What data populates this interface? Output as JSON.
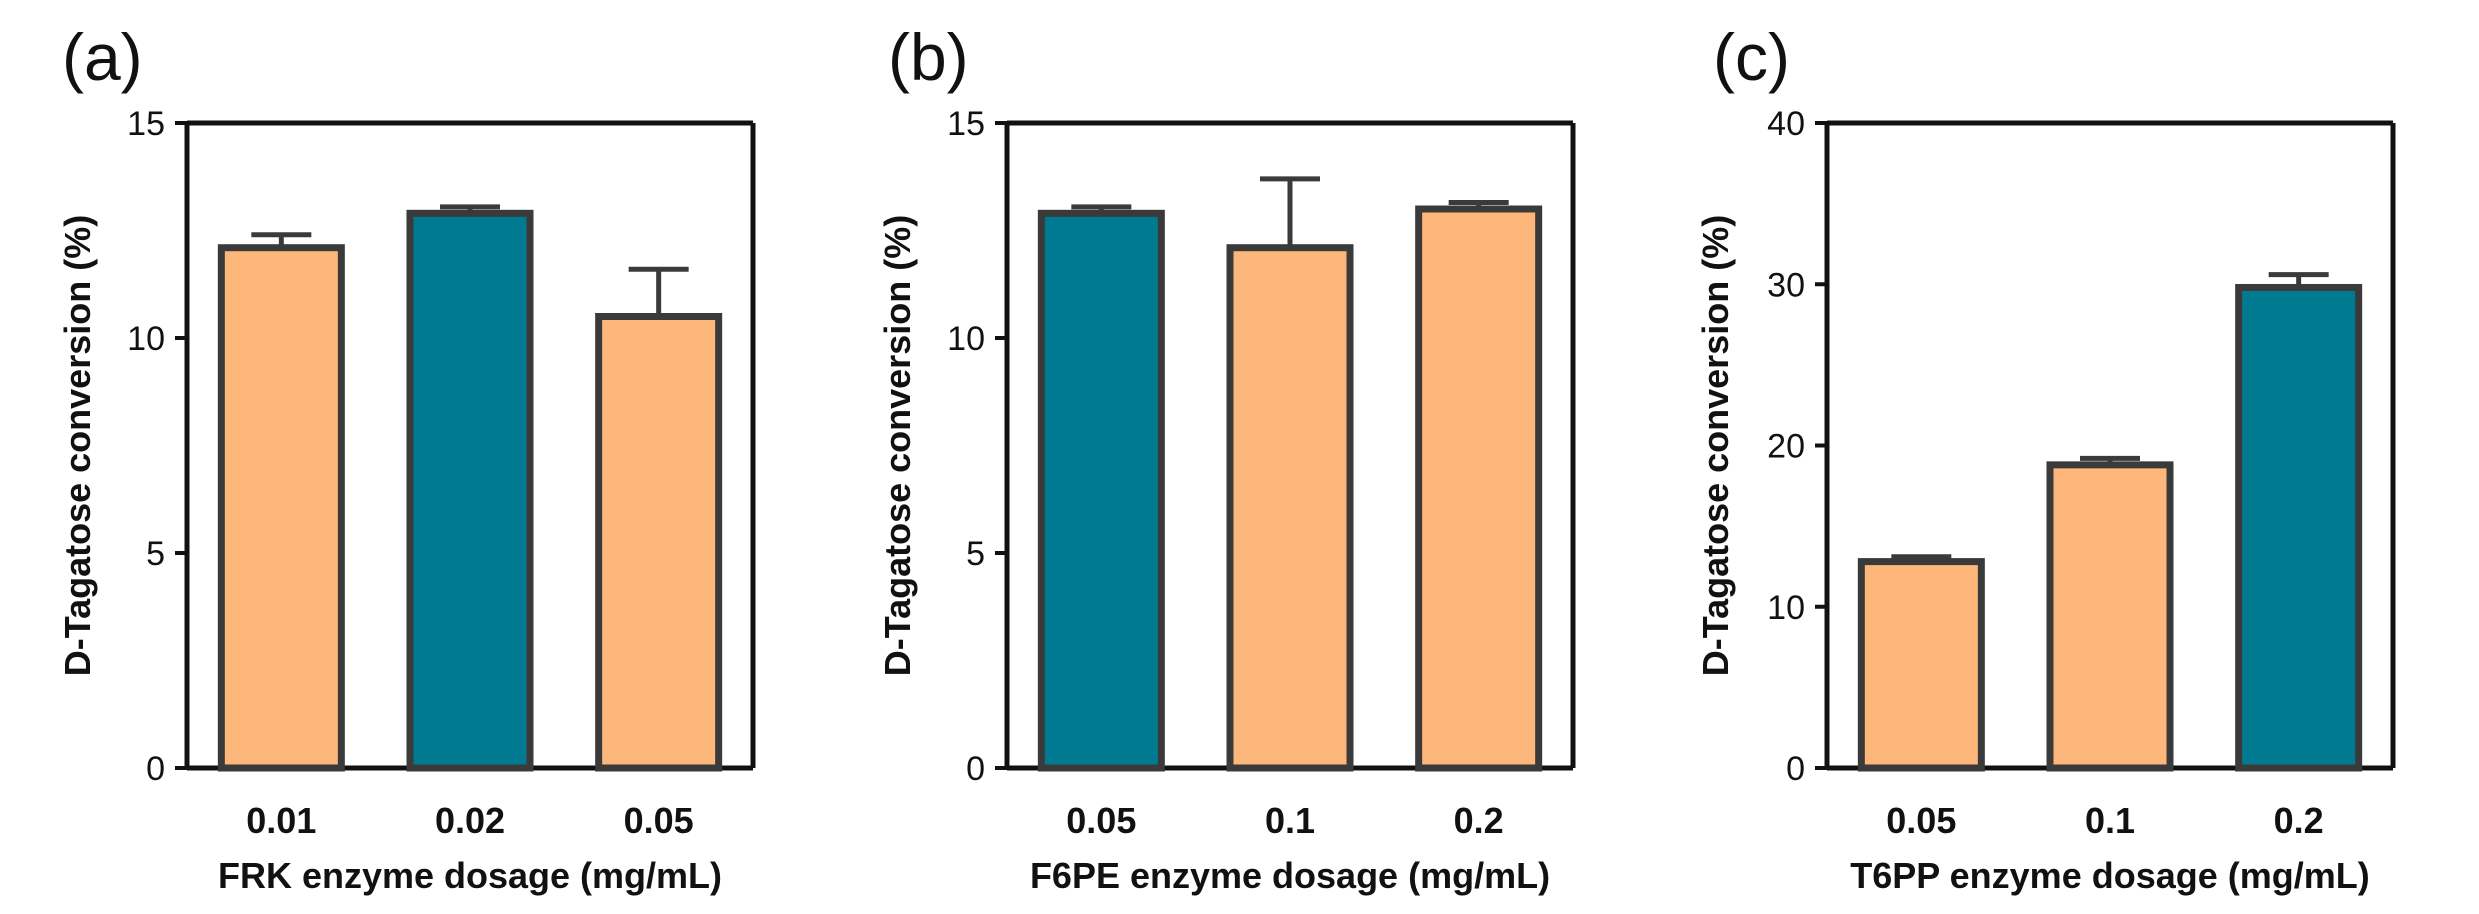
{
  "colors": {
    "orange": "#FDB77B",
    "teal": "#007A91",
    "outline": "#3A3A3A",
    "axis": "#111111"
  },
  "chart_data": [
    {
      "panel": "(a)",
      "type": "bar",
      "ylabel": "D-Tagatose conversion (%)",
      "xlabel": "FRK enzyme dosage (mg/mL)",
      "ylim": [
        0,
        15
      ],
      "yticks": [
        0,
        5,
        10,
        15
      ],
      "categories": [
        "0.01",
        "0.02",
        "0.05"
      ],
      "values": [
        12.1,
        12.9,
        10.5
      ],
      "errors": [
        0.3,
        0.15,
        1.1
      ],
      "bar_colors": [
        "orange",
        "teal",
        "orange"
      ]
    },
    {
      "panel": "(b)",
      "type": "bar",
      "ylabel": "D-Tagatose conversion (%)",
      "xlabel": "F6PE enzyme dosage (mg/mL)",
      "ylim": [
        0,
        15
      ],
      "yticks": [
        0,
        5,
        10,
        15
      ],
      "categories": [
        "0.05",
        "0.1",
        "0.2"
      ],
      "values": [
        12.9,
        12.1,
        13.0
      ],
      "errors": [
        0.15,
        1.6,
        0.15
      ],
      "bar_colors": [
        "teal",
        "orange",
        "orange"
      ]
    },
    {
      "panel": "(c)",
      "type": "bar",
      "ylabel": "D-Tagatose conversion (%)",
      "xlabel": "T6PP enzyme dosage (mg/mL)",
      "ylim": [
        0,
        40
      ],
      "yticks": [
        0,
        10,
        20,
        30,
        40
      ],
      "categories": [
        "0.05",
        "0.1",
        "0.2"
      ],
      "values": [
        12.8,
        18.8,
        29.8
      ],
      "errors": [
        0.3,
        0.4,
        0.8
      ],
      "bar_colors": [
        "orange",
        "orange",
        "teal"
      ]
    }
  ]
}
